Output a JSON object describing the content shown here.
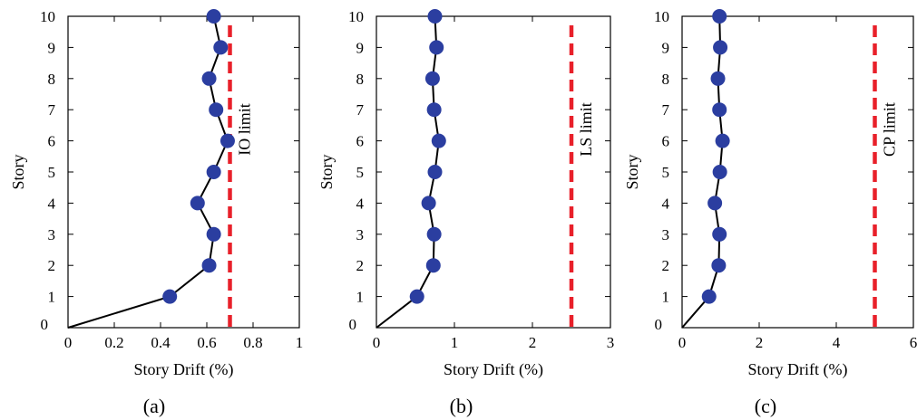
{
  "chart_data": [
    {
      "type": "line",
      "caption": "(a)",
      "xlabel": "Story Drift (%)",
      "ylabel": "Story",
      "xlim": [
        0,
        1
      ],
      "ylim": [
        0,
        10
      ],
      "xticks": [
        "0",
        "0.2",
        "0.4",
        "0.6",
        "0.8",
        "1"
      ],
      "xtick_values": [
        0,
        0.2,
        0.4,
        0.6,
        0.8,
        1
      ],
      "yticks": [
        "0",
        "1",
        "2",
        "3",
        "4",
        "5",
        "6",
        "7",
        "8",
        "9",
        "10"
      ],
      "series": [
        {
          "x": [
            0,
            0.44,
            0.61,
            0.63,
            0.56,
            0.63,
            0.69,
            0.64,
            0.61,
            0.66,
            0.63
          ],
          "y": [
            0,
            1,
            2,
            3,
            4,
            5,
            6,
            7,
            8,
            9,
            10
          ],
          "marker_points": [
            1,
            2,
            3,
            4,
            5,
            6,
            7,
            8,
            9,
            10
          ]
        }
      ],
      "limit": {
        "value": 0.7,
        "label": "IO limit",
        "color": "#e8202a"
      }
    },
    {
      "type": "line",
      "caption": "(b)",
      "xlabel": "Story Drift (%)",
      "ylabel": "Story",
      "xlim": [
        0,
        3
      ],
      "ylim": [
        0,
        10
      ],
      "xticks": [
        "0",
        "1",
        "2",
        "3"
      ],
      "xtick_values": [
        0,
        1,
        2,
        3
      ],
      "yticks": [
        "0",
        "1",
        "2",
        "3",
        "4",
        "5",
        "6",
        "7",
        "8",
        "9",
        "10"
      ],
      "series": [
        {
          "x": [
            0,
            0.52,
            0.73,
            0.74,
            0.67,
            0.75,
            0.8,
            0.74,
            0.72,
            0.77,
            0.75
          ],
          "y": [
            0,
            1,
            2,
            3,
            4,
            5,
            6,
            7,
            8,
            9,
            10
          ],
          "marker_points": [
            1,
            2,
            3,
            4,
            5,
            6,
            7,
            8,
            9,
            10
          ]
        }
      ],
      "limit": {
        "value": 2.5,
        "label": "LS limit",
        "color": "#e8202a"
      }
    },
    {
      "type": "line",
      "caption": "(c)",
      "xlabel": "Story Drift (%)",
      "ylabel": "Story",
      "xlim": [
        0,
        6
      ],
      "ylim": [
        0,
        10
      ],
      "xticks": [
        "0",
        "2",
        "4",
        "6"
      ],
      "xtick_values": [
        0,
        2,
        4,
        6
      ],
      "yticks": [
        "0",
        "1",
        "2",
        "3",
        "4",
        "5",
        "6",
        "7",
        "8",
        "9",
        "10"
      ],
      "series": [
        {
          "x": [
            0,
            0.7,
            0.95,
            0.97,
            0.85,
            0.98,
            1.05,
            0.97,
            0.93,
            0.99,
            0.97
          ],
          "y": [
            0,
            1,
            2,
            3,
            4,
            5,
            6,
            7,
            8,
            9,
            10
          ],
          "marker_points": [
            1,
            2,
            3,
            4,
            5,
            6,
            7,
            8,
            9,
            10
          ]
        }
      ],
      "limit": {
        "value": 5,
        "label": "CP limit",
        "color": "#e8202a"
      }
    }
  ],
  "style": {
    "marker_color": "#2b3ea0",
    "line_color": "#000000"
  }
}
